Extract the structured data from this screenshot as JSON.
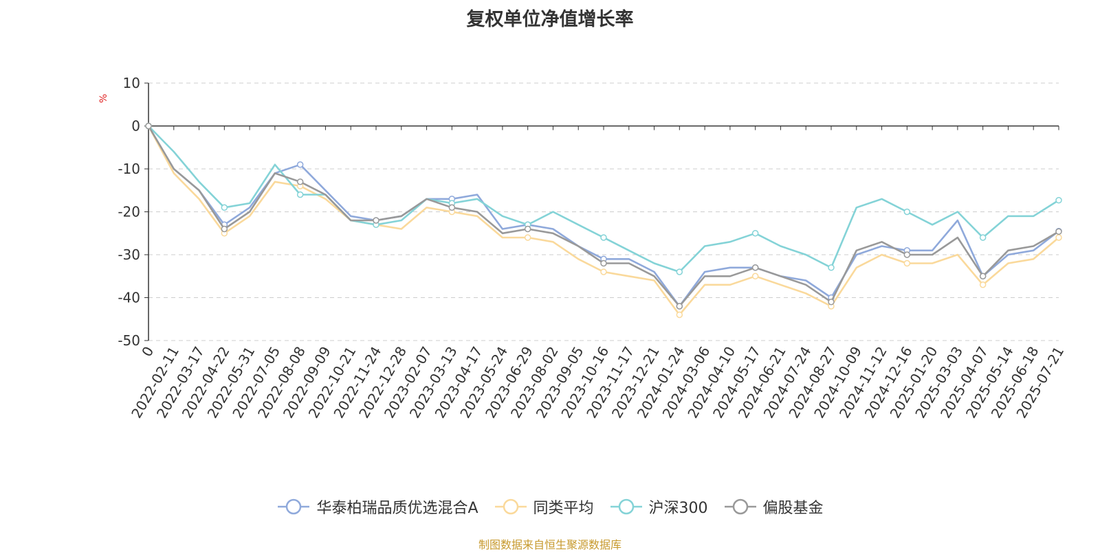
{
  "chart_data": {
    "type": "line",
    "title": "复权单位净值增长率",
    "ylabel": "%",
    "xlabel": "",
    "ylim": [
      -50,
      10
    ],
    "yticks": [
      10,
      0,
      -10,
      -20,
      -30,
      -40,
      -50
    ],
    "grid": true,
    "legend_position": "bottom",
    "x": [
      "0",
      "2022-02-11",
      "2022-03-17",
      "2022-04-22",
      "2022-05-31",
      "2022-07-05",
      "2022-08-08",
      "2022-09-09",
      "2022-10-21",
      "2022-11-24",
      "2022-12-28",
      "2023-02-07",
      "2023-03-13",
      "2023-04-17",
      "2023-05-24",
      "2023-06-29",
      "2023-08-02",
      "2023-09-05",
      "2023-10-16",
      "2023-11-17",
      "2023-12-21",
      "2024-01-24",
      "2024-03-06",
      "2024-04-10",
      "2024-05-17",
      "2024-06-21",
      "2024-07-24",
      "2024-08-27",
      "2024-10-09",
      "2024-11-12",
      "2024-12-16",
      "2025-01-20",
      "2025-03-03",
      "2025-04-07",
      "2025-05-14",
      "2025-06-18",
      "2025-07-21"
    ],
    "series": [
      {
        "name": "华泰柏瑞品质优选混合A",
        "color": "#8fa9db",
        "values": [
          0,
          -10,
          -15,
          -23,
          -19,
          -11,
          -9,
          -15,
          -21,
          -22,
          -21,
          -17,
          -17,
          -16,
          -24,
          -23,
          -24,
          -28,
          -31,
          -31,
          -34,
          -42,
          -34,
          -33,
          -33,
          -35,
          -36,
          -40,
          -30,
          -28,
          -29,
          -29,
          -22,
          -35,
          -30,
          -29,
          -24.5
        ]
      },
      {
        "name": "同类平均",
        "color": "#fad99b",
        "values": [
          0,
          -11,
          -17,
          -25,
          -21,
          -13,
          -14,
          -17,
          -22,
          -23,
          -24,
          -19,
          -20,
          -21,
          -26,
          -26,
          -27,
          -31,
          -34,
          -35,
          -36,
          -44,
          -37,
          -37,
          -35,
          -37,
          -39,
          -42,
          -33,
          -30,
          -32,
          -32,
          -30,
          -37,
          -32,
          -31,
          -26
        ]
      },
      {
        "name": "沪深300",
        "color": "#84d3d7",
        "values": [
          0,
          -6,
          -13,
          -19,
          -18,
          -9,
          -16,
          -16,
          -22,
          -23,
          -22,
          -17,
          -18,
          -17,
          -21,
          -23,
          -20,
          -23,
          -26,
          -29,
          -32,
          -34,
          -28,
          -27,
          -25,
          -28,
          -30,
          -33,
          -19,
          -17,
          -20,
          -23,
          -20,
          -26,
          -21,
          -21,
          -17.3
        ]
      },
      {
        "name": "偏股基金",
        "color": "#999999",
        "values": [
          0,
          -10,
          -15,
          -24,
          -20,
          -11,
          -13,
          -16,
          -22,
          -22,
          -21,
          -17,
          -19,
          -20,
          -25,
          -24,
          -25,
          -28,
          -32,
          -32,
          -35,
          -42,
          -35,
          -35,
          -33,
          -35,
          -37,
          -41,
          -29,
          -27,
          -30,
          -30,
          -26,
          -35,
          -29,
          -28,
          -24.6
        ]
      }
    ]
  },
  "footer": {
    "source": "制图数据来自恒生聚源数据库"
  }
}
